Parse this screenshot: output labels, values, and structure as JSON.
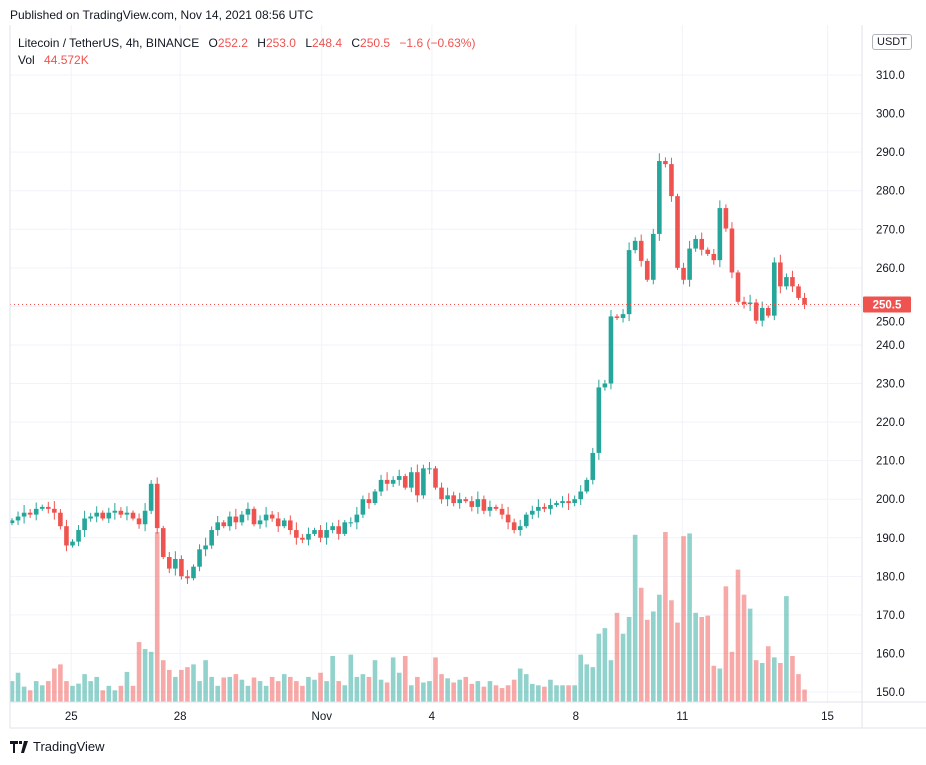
{
  "published": "Published on TradingView.com, Nov 14, 2021 08:56 UTC",
  "legend": {
    "symbol": "Litecoin / TetherUS, 4h, BINANCE",
    "o_label": "O",
    "o": "252.2",
    "h_label": "H",
    "h": "253.0",
    "l_label": "L",
    "l": "248.4",
    "c_label": "C",
    "c": "250.5",
    "change": "−1.6 (−0.63%)",
    "vol_label": "Vol",
    "vol": "44.572K"
  },
  "currency_button": "USDT",
  "last_price_label": "250.5",
  "brand": "TradingView",
  "colors": {
    "up": "#26a69a",
    "down": "#ef5350",
    "up_vol": "rgba(38,166,154,0.5)",
    "down_vol": "rgba(239,83,80,0.5)"
  },
  "chart_data": {
    "type": "candlestick",
    "interval": "4h",
    "ylim": [
      148,
      320
    ],
    "yticks": [
      "150.0",
      "160.0",
      "170.0",
      "180.0",
      "190.0",
      "200.0",
      "210.0",
      "220.0",
      "230.0",
      "240.0",
      "250.0",
      "260.0",
      "270.0",
      "280.0",
      "290.0",
      "300.0",
      "310.0"
    ],
    "xticks": [
      {
        "label": "25",
        "index": 9.8
      },
      {
        "label": "28",
        "index": 27.8
      },
      {
        "label": "Nov",
        "index": 51.2
      },
      {
        "label": "4",
        "index": 69.4
      },
      {
        "label": "8",
        "index": 93.2
      },
      {
        "label": "11",
        "index": 110.8
      },
      {
        "label": "15",
        "index": 134.8
      }
    ],
    "first_open": 193.8,
    "close": [
      194.5,
      195.5,
      196.5,
      196,
      197.5,
      198,
      197.5,
      196.5,
      193,
      188,
      189,
      192,
      195,
      195.5,
      196.5,
      195,
      196.5,
      197,
      196,
      196.5,
      195,
      193.5,
      197,
      204,
      192.5,
      185,
      182,
      184.5,
      180,
      179.5,
      182.5,
      187,
      188,
      192,
      194,
      193,
      195.5,
      194,
      196,
      197.5,
      193.5,
      194.5,
      196,
      195,
      193,
      194.5,
      192,
      190,
      189.5,
      191,
      192,
      190,
      192,
      193,
      191,
      194,
      194,
      196,
      200,
      199,
      202,
      205,
      204,
      205,
      206,
      203,
      207,
      201,
      208,
      208,
      203,
      200,
      201,
      199,
      200,
      199.5,
      198,
      200,
      197,
      198,
      197.5,
      196,
      194,
      192,
      193,
      196,
      197,
      198,
      197.5,
      198.5,
      199,
      199.5,
      199,
      200,
      202,
      205,
      212,
      229,
      230,
      247.4,
      247,
      248,
      264.6,
      267,
      261.8,
      256.9,
      268.8,
      287.7,
      286.9,
      278.6,
      260,
      256.9,
      265,
      267.5,
      264.7,
      263.6,
      262,
      275.5,
      270.2,
      258.8,
      251.2,
      250.6,
      251.0,
      246.3,
      249.6,
      247.6,
      261.4,
      255.2,
      257.6,
      255.2,
      252.2,
      250.5
    ],
    "volume_k": [
      75,
      105,
      55,
      42,
      75,
      60,
      75,
      120,
      135,
      75,
      58,
      66,
      100,
      75,
      90,
      42,
      58,
      42,
      58,
      108,
      58,
      215,
      190,
      180,
      610,
      150,
      115,
      90,
      115,
      125,
      135,
      75,
      150,
      90,
      58,
      88,
      90,
      100,
      80,
      58,
      88,
      75,
      58,
      90,
      75,
      100,
      90,
      75,
      58,
      90,
      80,
      105,
      75,
      165,
      75,
      60,
      170,
      90,
      100,
      90,
      150,
      80,
      70,
      160,
      105,
      165,
      60,
      90,
      70,
      75,
      160,
      100,
      85,
      70,
      80,
      90,
      65,
      75,
      55,
      75,
      60,
      50,
      60,
      80,
      120,
      100,
      65,
      60,
      55,
      80,
      60,
      60,
      60,
      60,
      170,
      135,
      125,
      245,
      265,
      150,
      320,
      245,
      305,
      600,
      410,
      295,
      325,
      385,
      610,
      365,
      285,
      595,
      605,
      320,
      305,
      310,
      130,
      120,
      415,
      180,
      475,
      385,
      335,
      150,
      140,
      200,
      160,
      140,
      380,
      165,
      100,
      44.572
    ],
    "last_price": 250.5
  }
}
